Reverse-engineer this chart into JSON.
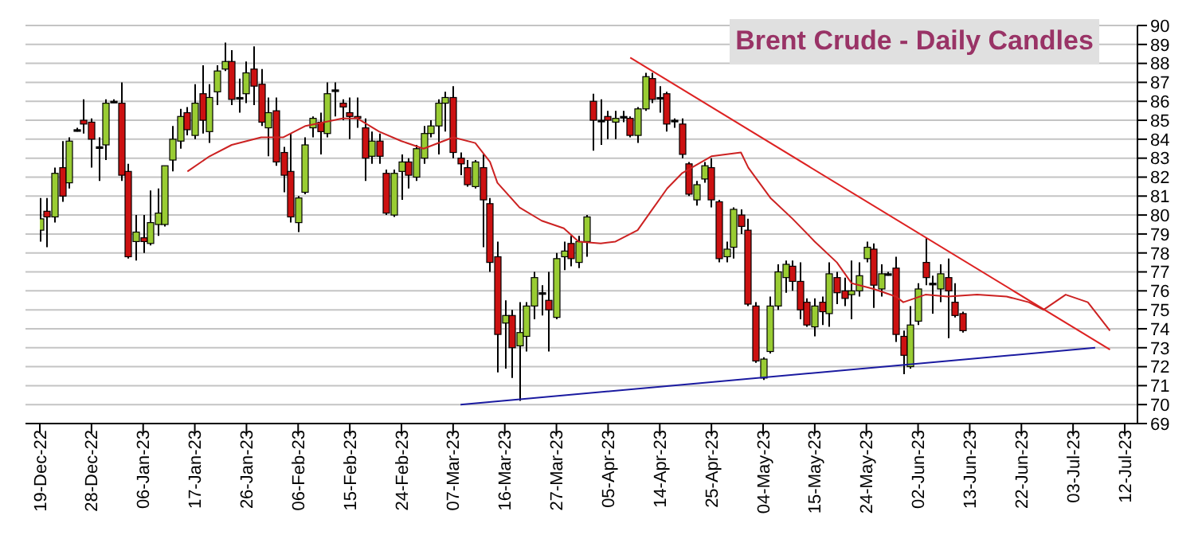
{
  "chart_data": {
    "type": "candlestick",
    "title": "Brent Crude - Daily Candles",
    "categories": [
      "19-Dec-22",
      null,
      null,
      null,
      null,
      null,
      null,
      "28-Dec-22",
      null,
      null,
      null,
      null,
      null,
      null,
      "06-Jan-23",
      null,
      null,
      null,
      null,
      null,
      null,
      "17-Jan-23",
      null,
      null,
      null,
      null,
      null,
      null,
      "26-Jan-23",
      null,
      null,
      null,
      null,
      null,
      null,
      "06-Feb-23",
      null,
      null,
      null,
      null,
      null,
      null,
      "15-Feb-23",
      null,
      null,
      null,
      null,
      null,
      null,
      "24-Feb-23",
      null,
      null,
      null,
      null,
      null,
      null,
      "07-Mar-23",
      null,
      null,
      null,
      null,
      null,
      null,
      "16-Mar-23",
      null,
      null,
      null,
      null,
      null,
      null,
      "27-Mar-23",
      null,
      null,
      null,
      null,
      null,
      null,
      "05-Apr-23",
      null,
      null,
      null,
      null,
      null,
      null,
      "14-Apr-23",
      null,
      null,
      null,
      null,
      null,
      null,
      "25-Apr-23",
      null,
      null,
      null,
      null,
      null,
      null,
      "04-May-23",
      null,
      null,
      null,
      null,
      null,
      null,
      "15-May-23",
      null,
      null,
      null,
      null,
      null,
      null,
      "24-May-23",
      null,
      null,
      null,
      null,
      null,
      null,
      "02-Jun-23",
      null,
      null,
      null,
      null,
      null,
      null,
      "13-Jun-23",
      null,
      null,
      null,
      null,
      null,
      null,
      "22-Jun-23",
      null,
      null,
      null,
      null,
      null,
      null,
      "03-Jul-23",
      null,
      null,
      null,
      null,
      null,
      null,
      "12-Jul-23"
    ],
    "ylim": [
      69,
      90
    ],
    "yticks": [
      69,
      70,
      71,
      72,
      73,
      74,
      75,
      76,
      77,
      78,
      79,
      80,
      81,
      82,
      83,
      84,
      85,
      86,
      87,
      88,
      89,
      90
    ],
    "grid": "y",
    "series": [
      {
        "ohlc": [
          [
            79.2,
            80.9,
            78.6,
            79.8
          ],
          [
            80.2,
            80.9,
            78.3,
            79.9
          ],
          [
            79.9,
            82.5,
            79.6,
            82.2
          ],
          [
            82.5,
            83.9,
            80.7,
            81.0
          ],
          [
            81.7,
            84.1,
            81.4,
            83.9
          ],
          [
            84.5,
            84.6,
            84.4,
            84.5
          ],
          [
            85.0,
            86.1,
            84.3,
            84.8
          ],
          [
            84.9,
            85.1,
            82.5,
            84.0
          ],
          [
            83.6,
            84.1,
            81.8,
            83.6
          ],
          [
            83.7,
            86.1,
            82.9,
            85.9
          ],
          [
            86.0,
            86.1,
            85.9,
            86.0
          ],
          [
            85.9,
            87.0,
            81.8,
            82.1
          ],
          [
            82.3,
            82.7,
            77.7,
            77.8
          ],
          [
            78.6,
            80.0,
            77.6,
            79.1
          ],
          [
            78.8,
            80.0,
            78.0,
            78.6
          ],
          [
            78.5,
            81.3,
            78.4,
            79.6
          ],
          [
            79.5,
            81.4,
            78.9,
            80.1
          ],
          [
            79.5,
            82.6,
            79.4,
            82.6
          ],
          [
            82.9,
            84.7,
            82.3,
            84.0
          ],
          [
            83.9,
            85.6,
            83.5,
            85.2
          ],
          [
            85.4,
            85.7,
            84.2,
            84.5
          ],
          [
            84.2,
            86.9,
            84.0,
            85.9
          ],
          [
            86.4,
            87.9,
            84.3,
            85.0
          ],
          [
            84.4,
            86.9,
            83.8,
            86.2
          ],
          [
            86.5,
            87.9,
            85.8,
            87.6
          ],
          [
            87.7,
            89.1,
            87.6,
            88.1
          ],
          [
            88.1,
            88.7,
            85.8,
            86.1
          ],
          [
            86.2,
            87.2,
            85.4,
            86.2
          ],
          [
            86.4,
            88.1,
            85.9,
            87.5
          ],
          [
            87.7,
            88.9,
            85.8,
            86.8
          ],
          [
            86.9,
            87.7,
            84.7,
            84.9
          ],
          [
            84.6,
            86.2,
            83.1,
            85.4
          ],
          [
            85.5,
            86.2,
            82.6,
            82.8
          ],
          [
            83.3,
            83.6,
            81.2,
            82.1
          ],
          [
            82.3,
            84.3,
            79.6,
            79.9
          ],
          [
            79.6,
            81.0,
            79.1,
            80.9
          ],
          [
            81.2,
            84.1,
            81.1,
            83.7
          ],
          [
            84.6,
            85.2,
            84.1,
            85.1
          ],
          [
            84.9,
            85.4,
            83.2,
            84.4
          ],
          [
            84.3,
            87.0,
            84.1,
            86.4
          ],
          [
            86.6,
            87.0,
            85.2,
            86.6
          ],
          [
            85.9,
            86.1,
            85.0,
            85.7
          ],
          [
            85.4,
            86.2,
            84.0,
            85.2
          ],
          [
            85.2,
            86.2,
            84.6,
            85.1
          ],
          [
            84.6,
            85.1,
            81.8,
            83.0
          ],
          [
            83.1,
            84.4,
            82.7,
            83.9
          ],
          [
            83.9,
            84.3,
            82.7,
            83.1
          ],
          [
            82.2,
            82.4,
            80.0,
            80.1
          ],
          [
            80.0,
            82.4,
            79.9,
            82.2
          ],
          [
            82.3,
            83.2,
            80.8,
            82.8
          ],
          [
            82.8,
            83.0,
            81.4,
            82.1
          ],
          [
            82.0,
            83.7,
            81.8,
            83.5
          ],
          [
            83.0,
            84.7,
            82.7,
            84.3
          ],
          [
            84.3,
            85.0,
            84.1,
            84.7
          ],
          [
            84.7,
            86.1,
            83.2,
            85.9
          ],
          [
            85.9,
            86.5,
            84.4,
            86.2
          ],
          [
            86.2,
            86.8,
            83.0,
            83.3
          ],
          [
            83.0,
            83.3,
            82.1,
            82.7
          ],
          [
            82.5,
            82.9,
            81.5,
            81.6
          ],
          [
            81.5,
            82.9,
            81.4,
            82.8
          ],
          [
            82.5,
            83.2,
            78.3,
            80.8
          ],
          [
            80.6,
            80.9,
            77.0,
            77.5
          ],
          [
            77.8,
            78.6,
            71.7,
            73.7
          ],
          [
            74.3,
            75.5,
            71.9,
            74.7
          ],
          [
            74.7,
            75.0,
            71.4,
            73.0
          ],
          [
            73.1,
            75.4,
            70.2,
            73.8
          ],
          [
            73.6,
            75.4,
            72.8,
            75.2
          ],
          [
            75.2,
            77.0,
            74.5,
            76.7
          ],
          [
            75.9,
            76.3,
            74.7,
            75.9
          ],
          [
            75.5,
            77.0,
            72.8,
            75.0
          ],
          [
            74.6,
            78.0,
            74.5,
            77.7
          ],
          [
            77.8,
            78.6,
            77.1,
            78.1
          ],
          [
            78.5,
            78.9,
            77.3,
            77.7
          ],
          [
            77.5,
            78.9,
            77.2,
            78.6
          ],
          [
            78.6,
            80.0,
            77.8,
            79.9
          ],
          [
            86.0,
            86.4,
            83.4,
            85.0
          ],
          [
            85.0,
            86.1,
            83.7,
            85.0
          ],
          [
            85.2,
            85.5,
            84.0,
            85.0
          ],
          [
            84.9,
            85.5,
            84.0,
            85.1
          ],
          [
            85.2,
            85.5,
            84.9,
            85.2
          ],
          [
            85.1,
            85.2,
            84.1,
            84.2
          ],
          [
            84.2,
            85.7,
            83.8,
            85.6
          ],
          [
            85.6,
            87.5,
            85.5,
            87.3
          ],
          [
            87.2,
            87.5,
            85.9,
            86.1
          ],
          [
            86.2,
            86.8,
            85.4,
            86.2
          ],
          [
            86.4,
            86.5,
            84.4,
            84.8
          ],
          [
            85.0,
            85.1,
            84.6,
            85.0
          ],
          [
            84.8,
            85.1,
            83.0,
            83.2
          ],
          [
            82.7,
            82.8,
            81.0,
            81.1
          ],
          [
            80.8,
            81.8,
            80.5,
            81.6
          ],
          [
            81.9,
            82.8,
            81.7,
            82.6
          ],
          [
            82.5,
            83.0,
            80.4,
            80.8
          ],
          [
            80.7,
            80.8,
            77.5,
            77.7
          ],
          [
            77.8,
            78.6,
            77.5,
            78.2
          ],
          [
            78.3,
            80.4,
            77.7,
            80.3
          ],
          [
            80.0,
            80.3,
            79.0,
            79.4
          ],
          [
            79.2,
            79.8,
            75.2,
            75.3
          ],
          [
            75.2,
            75.4,
            72.2,
            72.3
          ],
          [
            71.4,
            72.5,
            71.3,
            72.4
          ],
          [
            72.8,
            75.7,
            72.7,
            75.2
          ],
          [
            75.2,
            77.4,
            75.0,
            77.0
          ],
          [
            76.7,
            77.6,
            75.9,
            77.4
          ],
          [
            77.3,
            77.6,
            76.0,
            76.5
          ],
          [
            76.5,
            77.5,
            74.5,
            75.0
          ],
          [
            75.4,
            75.6,
            74.1,
            74.2
          ],
          [
            74.1,
            75.6,
            73.6,
            75.2
          ],
          [
            75.4,
            75.7,
            74.2,
            74.9
          ],
          [
            74.8,
            77.5,
            74.1,
            76.9
          ],
          [
            76.7,
            77.0,
            75.3,
            75.9
          ],
          [
            76.0,
            76.7,
            75.2,
            75.6
          ],
          [
            75.8,
            77.6,
            74.5,
            76.0
          ],
          [
            76.0,
            77.5,
            75.7,
            76.8
          ],
          [
            77.7,
            78.6,
            77.5,
            78.3
          ],
          [
            78.2,
            78.5,
            75.1,
            76.3
          ],
          [
            76.1,
            77.4,
            75.7,
            76.9
          ],
          [
            76.9,
            77.0,
            76.8,
            76.9
          ],
          [
            77.2,
            77.8,
            73.3,
            73.7
          ],
          [
            73.6,
            73.9,
            71.6,
            72.6
          ],
          [
            72.0,
            75.2,
            71.9,
            74.2
          ],
          [
            74.4,
            76.4,
            74.2,
            76.1
          ],
          [
            77.5,
            78.8,
            76.3,
            76.7
          ],
          [
            76.4,
            76.8,
            74.8,
            76.4
          ],
          [
            76.1,
            77.4,
            75.4,
            76.9
          ],
          [
            76.7,
            77.7,
            73.5,
            76.0
          ],
          [
            75.4,
            76.4,
            74.6,
            74.7
          ],
          [
            74.8,
            74.9,
            73.8,
            73.9
          ],
          null,
          null,
          null,
          null,
          null,
          null,
          null,
          null,
          null,
          null,
          null,
          null,
          null,
          null,
          null,
          null,
          null,
          null,
          null,
          null,
          null,
          null
        ],
        "colors": [
          "#99cc33",
          "#cc1111",
          "#99cc33",
          "#cc1111",
          "#99cc33",
          "#000000",
          "#cc1111",
          "#cc1111",
          "#000000",
          "#99cc33",
          "#000000",
          "#cc1111",
          "#cc1111",
          "#99cc33",
          "#cc1111",
          "#99cc33",
          "#99cc33",
          "#99cc33",
          "#99cc33",
          "#99cc33",
          "#cc1111",
          "#99cc33",
          "#cc1111",
          "#99cc33",
          "#99cc33",
          "#99cc33",
          "#cc1111",
          "#000000",
          "#99cc33",
          "#cc1111",
          "#cc1111",
          "#99cc33",
          "#cc1111",
          "#cc1111",
          "#cc1111",
          "#99cc33",
          "#99cc33",
          "#99cc33",
          "#cc1111",
          "#99cc33",
          "#000000",
          "#cc1111",
          "#cc1111",
          "#cc1111",
          "#cc1111",
          "#99cc33",
          "#cc1111",
          "#cc1111",
          "#99cc33",
          "#99cc33",
          "#cc1111",
          "#99cc33",
          "#99cc33",
          "#99cc33",
          "#99cc33",
          "#99cc33",
          "#cc1111",
          "#cc1111",
          "#cc1111",
          "#99cc33",
          "#cc1111",
          "#cc1111",
          "#cc1111",
          "#99cc33",
          "#cc1111",
          "#99cc33",
          "#99cc33",
          "#99cc33",
          "#000000",
          "#cc1111",
          "#99cc33",
          "#99cc33",
          "#cc1111",
          "#99cc33",
          "#99cc33",
          "#cc1111",
          "#000000",
          "#cc1111",
          "#99cc33",
          "#000000",
          "#cc1111",
          "#99cc33",
          "#99cc33",
          "#cc1111",
          "#000000",
          "#cc1111",
          "#000000",
          "#cc1111",
          "#cc1111",
          "#99cc33",
          "#99cc33",
          "#cc1111",
          "#cc1111",
          "#99cc33",
          "#99cc33",
          "#cc1111",
          "#cc1111",
          "#cc1111",
          "#99cc33",
          "#99cc33",
          "#99cc33",
          "#99cc33",
          "#cc1111",
          "#cc1111",
          "#cc1111",
          "#99cc33",
          "#cc1111",
          "#99cc33",
          "#cc1111",
          "#cc1111",
          "#99cc33",
          "#99cc33",
          "#99cc33",
          "#cc1111",
          "#99cc33",
          "#000000",
          "#cc1111",
          "#cc1111",
          "#99cc33",
          "#99cc33",
          "#cc1111",
          "#000000",
          "#99cc33",
          "#cc1111",
          "#cc1111",
          "#cc1111",
          null,
          null,
          null,
          null,
          null,
          null,
          null,
          null,
          null,
          null,
          null,
          null,
          null,
          null,
          null,
          null,
          null,
          null,
          null,
          null,
          null,
          null
        ]
      },
      {
        "type": "line",
        "color": "#cc2222",
        "values": [
          null,
          null,
          null,
          null,
          null,
          null,
          null,
          null,
          null,
          null,
          null,
          null,
          null,
          null,
          null,
          null,
          null,
          null,
          null,
          null,
          82.3,
          null,
          null,
          83.1,
          null,
          null,
          83.7,
          null,
          null,
          null,
          84.1,
          null,
          null,
          84.1,
          null,
          null,
          84.7,
          null,
          null,
          null,
          null,
          85.1,
          null,
          85.1,
          null,
          null,
          84.4,
          null,
          null,
          83.9,
          null,
          null,
          83.5,
          null,
          null,
          null,
          84.1,
          null,
          null,
          83.8,
          null,
          82.8,
          81.7,
          null,
          null,
          80.4,
          null,
          null,
          79.7,
          null,
          null,
          79.3,
          null,
          78.6,
          null,
          null,
          78.5,
          null,
          78.6,
          null,
          null,
          79.2,
          null,
          80.3,
          null,
          81.4,
          null,
          82.2,
          null,
          null,
          null,
          83.1,
          null,
          null,
          null,
          83.3,
          82.5,
          null,
          null,
          80.9,
          null,
          null,
          79.8,
          null,
          null,
          78.6,
          null,
          null,
          77.5,
          null,
          76.4,
          null,
          null,
          76.1,
          null,
          null,
          75.7,
          75.4,
          null,
          null,
          75.8,
          null,
          null,
          75.7,
          null,
          null,
          null,
          75.8,
          null,
          null,
          null,
          75.7,
          null,
          null,
          75.4,
          null,
          75.0,
          null,
          null,
          75.8,
          null,
          null,
          75.4,
          null,
          null,
          73.9,
          null,
          null
        ]
      },
      {
        "type": "line",
        "color": "#dd2222",
        "values": [
          null,
          null,
          null,
          null,
          null,
          null,
          null,
          null,
          null,
          null,
          null,
          null,
          null,
          null,
          null,
          null,
          null,
          null,
          null,
          null,
          null,
          null,
          null,
          null,
          null,
          null,
          null,
          null,
          null,
          null,
          null,
          null,
          null,
          null,
          null,
          null,
          null,
          null,
          null,
          null,
          null,
          null,
          null,
          null,
          null,
          null,
          null,
          null,
          null,
          null,
          null,
          null,
          null,
          null,
          null,
          null,
          null,
          null,
          null,
          null,
          null,
          null,
          null,
          null,
          null,
          null,
          null,
          null,
          null,
          null,
          null,
          null,
          null,
          null,
          null,
          null,
          null,
          null,
          null,
          null,
          88.3,
          null,
          null,
          null,
          null,
          null,
          null,
          null,
          null,
          null,
          null,
          null,
          null,
          null,
          null,
          null,
          null,
          null,
          null,
          null,
          null,
          null,
          null,
          null,
          null,
          null,
          null,
          null,
          null,
          null,
          null,
          null,
          null,
          null,
          null,
          null,
          null,
          null,
          null,
          null,
          null,
          null,
          null,
          null,
          null,
          null,
          null,
          null,
          null,
          null,
          null,
          null,
          null,
          null,
          null,
          null,
          null,
          null,
          null,
          null,
          null,
          null,
          null,
          null,
          null,
          72.9,
          null,
          null
        ]
      },
      {
        "type": "line",
        "color": "#1a1aa0",
        "values": [
          null,
          null,
          null,
          null,
          null,
          null,
          null,
          null,
          null,
          null,
          null,
          null,
          null,
          null,
          null,
          null,
          null,
          null,
          null,
          null,
          null,
          null,
          null,
          null,
          null,
          null,
          null,
          null,
          null,
          null,
          null,
          null,
          null,
          null,
          null,
          null,
          null,
          null,
          null,
          null,
          null,
          null,
          null,
          null,
          null,
          null,
          null,
          null,
          null,
          null,
          null,
          null,
          null,
          null,
          null,
          null,
          null,
          70.0,
          null,
          null,
          null,
          null,
          null,
          null,
          null,
          null,
          null,
          null,
          null,
          null,
          null,
          null,
          null,
          null,
          null,
          null,
          null,
          null,
          null,
          null,
          null,
          null,
          null,
          null,
          null,
          null,
          null,
          null,
          null,
          null,
          null,
          null,
          null,
          null,
          null,
          null,
          null,
          null,
          null,
          null,
          null,
          null,
          null,
          null,
          null,
          null,
          null,
          null,
          null,
          null,
          null,
          null,
          null,
          null,
          null,
          null,
          null,
          null,
          null,
          null,
          null,
          null,
          null,
          null,
          null,
          null,
          null,
          null,
          null,
          null,
          null,
          null,
          null,
          null,
          null,
          null,
          null,
          null,
          null,
          null,
          null,
          null,
          null,
          73.0,
          null,
          null,
          null,
          null
        ]
      }
    ]
  }
}
